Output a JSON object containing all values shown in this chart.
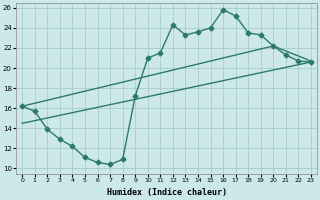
{
  "title": "",
  "xlabel": "Humidex (Indice chaleur)",
  "ylabel": "",
  "bg_color": "#cce8e8",
  "grid_color": "#aacccc",
  "line_color": "#2d7a6a",
  "xlim": [
    -0.5,
    23.5
  ],
  "ylim": [
    9.5,
    26.5
  ],
  "xticks": [
    0,
    1,
    2,
    3,
    4,
    5,
    6,
    7,
    8,
    9,
    10,
    11,
    12,
    13,
    14,
    15,
    16,
    17,
    18,
    19,
    20,
    21,
    22,
    23
  ],
  "yticks": [
    10,
    12,
    14,
    16,
    18,
    20,
    22,
    24,
    26
  ],
  "line1_x": [
    0,
    1,
    2,
    3,
    4,
    5,
    6,
    7,
    8,
    9,
    10,
    11,
    12,
    13,
    14,
    15,
    16,
    17,
    18,
    19,
    20,
    21,
    22,
    23
  ],
  "line1_y": [
    16.2,
    15.7,
    13.9,
    12.9,
    12.2,
    11.1,
    10.6,
    10.4,
    10.9,
    17.2,
    21.0,
    21.5,
    24.3,
    23.3,
    23.6,
    24.0,
    25.8,
    25.2,
    23.5,
    23.3,
    22.2,
    21.3,
    20.7,
    20.6
  ],
  "line2_x": [
    0,
    20,
    23
  ],
  "line2_y": [
    16.2,
    22.2,
    20.7
  ],
  "line3_x": [
    0,
    23
  ],
  "line3_y": [
    14.5,
    20.6
  ],
  "marker": "D",
  "markersize": 2.5,
  "linewidth": 1.0
}
